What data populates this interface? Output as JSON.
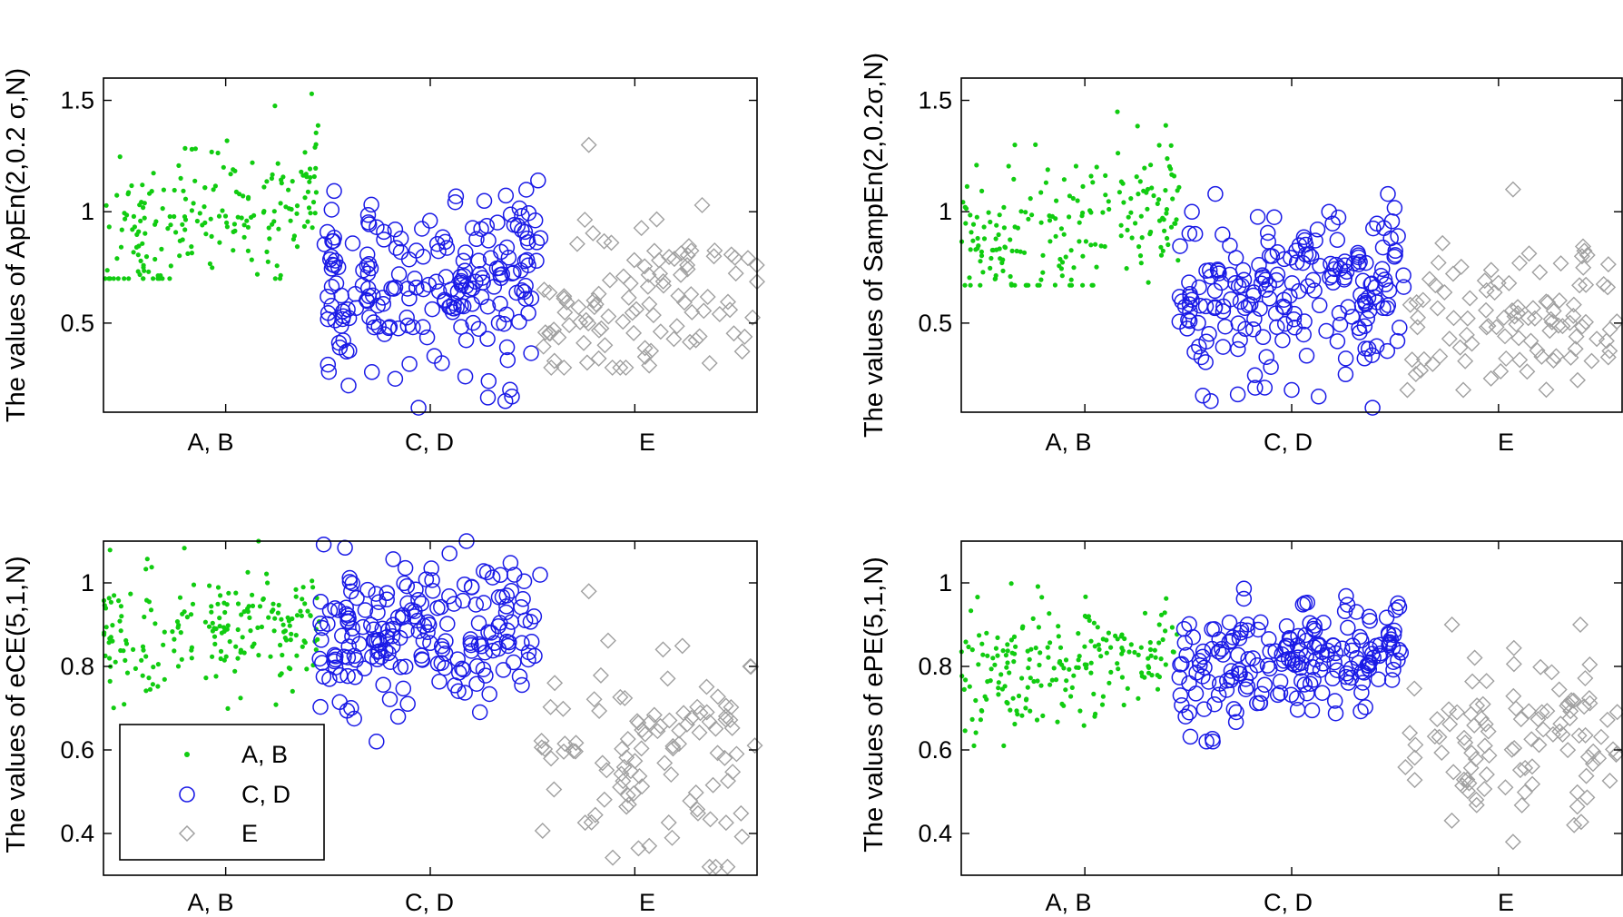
{
  "group_styles": {
    "A, B": {
      "marker": "dot",
      "color": "#11cc11"
    },
    "C, D": {
      "marker": "circle",
      "color": "#1a1ae6"
    },
    "E": {
      "marker": "diamond",
      "color": "#a0a0a0"
    }
  },
  "legend": {
    "items": [
      {
        "label": "A, B",
        "marker": "dot",
        "color": "#11cc11"
      },
      {
        "label": "C, D",
        "marker": "circle",
        "color": "#1a1ae6"
      },
      {
        "label": "E",
        "marker": "diamond",
        "color": "#a0a0a0"
      }
    ],
    "location": "lower-left of bottom-left panel"
  },
  "chart_data": [
    {
      "type": "scatter",
      "ylabel": "The values of ApEn(2,0.2 σ,N)",
      "xlabel": "",
      "categories": [
        "A, B",
        "C, D",
        "E"
      ],
      "ylim": [
        0.1,
        1.6
      ],
      "yticks": [
        0.5,
        1,
        1.5
      ],
      "ytick_labels": [
        "0.5",
        "1",
        "1.5"
      ],
      "grid": false,
      "legend": false,
      "series": [
        {
          "name": "A, B",
          "n": 200,
          "y_range": [
            0.7,
            1.6
          ],
          "y_center": 0.95,
          "y_trend": [
            0.85,
            1.1
          ]
        },
        {
          "name": "C, D",
          "n": 200,
          "y_range": [
            0.12,
            1.15
          ],
          "y_center": 0.7,
          "y_trend": [
            0.68,
            0.72
          ],
          "outliers": [
            0.22,
            0.28,
            0.25,
            0.12,
            0.32,
            0.26,
            0.24,
            0.17
          ]
        },
        {
          "name": "E",
          "n": 100,
          "y_range": [
            0.3,
            1.3
          ],
          "y_center": 0.62,
          "y_trend": [
            0.6,
            0.65
          ],
          "outliers": [
            1.3,
            0.31,
            0.32
          ]
        }
      ]
    },
    {
      "type": "scatter",
      "ylabel": "The values of SampEn(2,0.2σ,N)",
      "xlabel": "",
      "categories": [
        "A, B",
        "C, D",
        "E"
      ],
      "ylim": [
        0.1,
        1.6
      ],
      "yticks": [
        0.5,
        1,
        1.5
      ],
      "ytick_labels": [
        "0.5",
        "1",
        "1.5"
      ],
      "grid": false,
      "legend": false,
      "series": [
        {
          "name": "A, B",
          "n": 200,
          "y_range": [
            0.67,
            1.53
          ],
          "y_center": 0.92,
          "y_trend": [
            0.82,
            1.05
          ]
        },
        {
          "name": "C, D",
          "n": 200,
          "y_range": [
            0.12,
            1.08
          ],
          "y_center": 0.65,
          "y_trend": [
            0.6,
            0.72
          ],
          "outliers": [
            0.15,
            0.18,
            0.21,
            0.2,
            0.17,
            0.27,
            0.12
          ]
        },
        {
          "name": "E",
          "n": 100,
          "y_range": [
            0.2,
            1.1
          ],
          "y_center": 0.5,
          "y_trend": [
            0.48,
            0.52
          ],
          "outliers": [
            1.1
          ]
        }
      ]
    },
    {
      "type": "scatter",
      "ylabel": "The values of eCE(5,1,N)",
      "xlabel": "",
      "categories": [
        "A, B",
        "C, D",
        "E"
      ],
      "ylim": [
        0.3,
        1.1
      ],
      "yticks": [
        0.4,
        0.6,
        0.8,
        1
      ],
      "ytick_labels": [
        "0.4",
        "0.6",
        "0.8",
        "1"
      ],
      "grid": false,
      "legend": true,
      "series": [
        {
          "name": "A, B",
          "n": 200,
          "y_range": [
            0.66,
            1.1
          ],
          "y_center": 0.9,
          "y_trend": [
            0.88,
            0.92
          ]
        },
        {
          "name": "C, D",
          "n": 200,
          "y_range": [
            0.62,
            1.1
          ],
          "y_center": 0.88,
          "y_trend": [
            0.86,
            0.92
          ]
        },
        {
          "name": "E",
          "n": 100,
          "y_range": [
            0.32,
            0.98
          ],
          "y_center": 0.62,
          "y_trend": [
            0.62,
            0.62
          ],
          "outliers": [
            0.98,
            0.37,
            0.32
          ]
        }
      ]
    },
    {
      "type": "scatter",
      "ylabel": "The values of ePE(5,1,N)",
      "xlabel": "",
      "categories": [
        "A, B",
        "C, D",
        "E"
      ],
      "ylim": [
        0.3,
        1.1
      ],
      "yticks": [
        0.4,
        0.6,
        0.8,
        1
      ],
      "ytick_labels": [
        "0.4",
        "0.6",
        "0.8",
        "1"
      ],
      "grid": false,
      "legend": false,
      "series": [
        {
          "name": "A, B",
          "n": 200,
          "y_range": [
            0.61,
            1.02
          ],
          "y_center": 0.8,
          "y_trend": [
            0.76,
            0.85
          ]
        },
        {
          "name": "C, D",
          "n": 200,
          "y_range": [
            0.62,
            0.99
          ],
          "y_center": 0.8,
          "y_trend": [
            0.78,
            0.84
          ]
        },
        {
          "name": "E",
          "n": 100,
          "y_range": [
            0.38,
            0.9
          ],
          "y_center": 0.62,
          "y_trend": [
            0.6,
            0.64
          ],
          "outliers": [
            0.9,
            0.38,
            0.42
          ]
        }
      ]
    }
  ]
}
